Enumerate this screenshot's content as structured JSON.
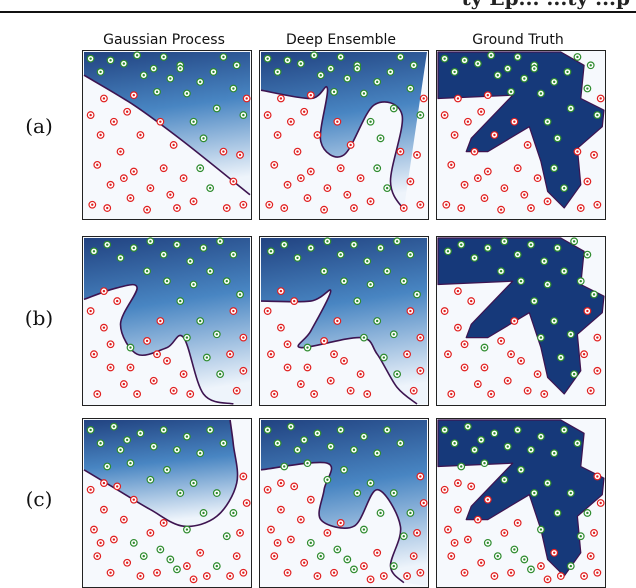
{
  "header": {
    "cut_text": "ty Ep... ...ty ...p"
  },
  "chart_data": {
    "type": "scatter",
    "columns": [
      "Gaussian Process",
      "Deep Ensemble",
      "Ground Truth"
    ],
    "rows": [
      "(a)",
      "(b)",
      "(c)"
    ],
    "colors": {
      "positive": "#2e8b2e",
      "negative": "#e02020",
      "region": "#16397a",
      "boundary": "#3d1450"
    },
    "xlim": [
      0,
      1
    ],
    "ylim": [
      0,
      1
    ],
    "ground_truth_region": [
      [
        0.0,
        1.0
      ],
      [
        0.0,
        0.72
      ],
      [
        0.45,
        0.74
      ],
      [
        0.2,
        0.48
      ],
      [
        0.17,
        0.4
      ],
      [
        0.3,
        0.4
      ],
      [
        0.55,
        0.55
      ],
      [
        0.62,
        0.34
      ],
      [
        0.66,
        0.16
      ],
      [
        0.76,
        0.06
      ],
      [
        0.86,
        0.2
      ],
      [
        0.84,
        0.42
      ],
      [
        0.99,
        0.55
      ],
      [
        1.0,
        0.65
      ],
      [
        0.86,
        0.72
      ],
      [
        0.88,
        0.92
      ],
      [
        0.74,
        1.0
      ]
    ],
    "panels": [
      {
        "row": "(a)",
        "decision_boundaries": {
          "Gaussian Process": [
            [
              0.0,
              0.86
            ],
            [
              0.3,
              0.68
            ],
            [
              0.6,
              0.46
            ],
            [
              1.0,
              0.14
            ]
          ],
          "Deep Ensemble": [
            [
              0.0,
              0.77
            ],
            [
              0.3,
              0.72
            ],
            [
              0.4,
              0.78
            ],
            [
              0.36,
              0.46
            ],
            [
              0.5,
              0.38
            ],
            [
              0.68,
              0.68
            ],
            [
              0.85,
              0.62
            ],
            [
              0.78,
              0.22
            ],
            [
              0.86,
              0.05
            ]
          ]
        },
        "points_positive": [
          [
            0.04,
            0.96
          ],
          [
            0.16,
            0.95
          ],
          [
            0.1,
            0.88
          ],
          [
            0.24,
            0.93
          ],
          [
            0.32,
            0.98
          ],
          [
            0.42,
            0.9
          ],
          [
            0.48,
            0.97
          ],
          [
            0.36,
            0.86
          ],
          [
            0.52,
            0.84
          ],
          [
            0.58,
            0.92
          ],
          [
            0.62,
            0.75
          ],
          [
            0.7,
            0.82
          ],
          [
            0.78,
            0.88
          ],
          [
            0.84,
            0.97
          ],
          [
            0.92,
            0.92
          ],
          [
            0.66,
            0.58
          ],
          [
            0.72,
            0.48
          ],
          [
            0.8,
            0.66
          ],
          [
            0.9,
            0.78
          ],
          [
            0.96,
            0.62
          ],
          [
            0.7,
            0.3
          ],
          [
            0.76,
            0.18
          ],
          [
            0.58,
            0.9
          ],
          [
            0.44,
            0.76
          ]
        ],
        "points_negative": [
          [
            0.04,
            0.62
          ],
          [
            0.1,
            0.5
          ],
          [
            0.18,
            0.58
          ],
          [
            0.26,
            0.64
          ],
          [
            0.08,
            0.32
          ],
          [
            0.16,
            0.2
          ],
          [
            0.22,
            0.4
          ],
          [
            0.3,
            0.28
          ],
          [
            0.4,
            0.18
          ],
          [
            0.48,
            0.3
          ],
          [
            0.05,
            0.08
          ],
          [
            0.14,
            0.06
          ],
          [
            0.28,
            0.12
          ],
          [
            0.38,
            0.05
          ],
          [
            0.52,
            0.14
          ],
          [
            0.56,
            0.06
          ],
          [
            0.6,
            0.24
          ],
          [
            0.34,
            0.5
          ],
          [
            0.46,
            0.58
          ],
          [
            0.54,
            0.44
          ],
          [
            0.3,
            0.74
          ],
          [
            0.84,
            0.4
          ],
          [
            0.9,
            0.22
          ],
          [
            0.96,
            0.08
          ],
          [
            0.86,
            0.06
          ],
          [
            0.66,
            0.1
          ],
          [
            0.94,
            0.38
          ],
          [
            0.24,
            0.24
          ],
          [
            0.12,
            0.72
          ],
          [
            0.98,
            0.72
          ]
        ]
      },
      {
        "row": "(b)",
        "decision_boundaries": {
          "Gaussian Process": [
            [
              0.0,
              0.63
            ],
            [
              0.2,
              0.7
            ],
            [
              0.32,
              0.7
            ],
            [
              0.22,
              0.48
            ],
            [
              0.32,
              0.3
            ],
            [
              0.5,
              0.34
            ],
            [
              0.6,
              0.4
            ],
            [
              0.72,
              0.06
            ],
            [
              0.9,
              0.0
            ]
          ],
          "Deep Ensemble": [
            [
              0.0,
              0.62
            ],
            [
              0.3,
              0.62
            ],
            [
              0.42,
              0.68
            ],
            [
              0.3,
              0.44
            ],
            [
              0.24,
              0.34
            ],
            [
              0.6,
              0.4
            ],
            [
              0.7,
              0.3
            ],
            [
              0.82,
              0.1
            ],
            [
              0.94,
              0.0
            ]
          ]
        },
        "points_positive": [
          [
            0.06,
            0.92
          ],
          [
            0.14,
            0.96
          ],
          [
            0.22,
            0.88
          ],
          [
            0.3,
            0.94
          ],
          [
            0.4,
            0.98
          ],
          [
            0.48,
            0.9
          ],
          [
            0.56,
            0.96
          ],
          [
            0.64,
            0.86
          ],
          [
            0.72,
            0.94
          ],
          [
            0.82,
            0.98
          ],
          [
            0.9,
            0.9
          ],
          [
            0.38,
            0.8
          ],
          [
            0.5,
            0.74
          ],
          [
            0.58,
            0.62
          ],
          [
            0.66,
            0.72
          ],
          [
            0.76,
            0.8
          ],
          [
            0.86,
            0.74
          ],
          [
            0.94,
            0.66
          ],
          [
            0.7,
            0.5
          ],
          [
            0.8,
            0.42
          ],
          [
            0.74,
            0.28
          ],
          [
            0.82,
            0.18
          ],
          [
            0.28,
            0.34
          ],
          [
            0.62,
            0.4
          ]
        ],
        "points_negative": [
          [
            0.04,
            0.56
          ],
          [
            0.12,
            0.46
          ],
          [
            0.06,
            0.3
          ],
          [
            0.16,
            0.22
          ],
          [
            0.24,
            0.12
          ],
          [
            0.08,
            0.06
          ],
          [
            0.32,
            0.06
          ],
          [
            0.42,
            0.14
          ],
          [
            0.5,
            0.26
          ],
          [
            0.38,
            0.38
          ],
          [
            0.46,
            0.5
          ],
          [
            0.2,
            0.62
          ],
          [
            0.54,
            0.08
          ],
          [
            0.6,
            0.18
          ],
          [
            0.64,
            0.06
          ],
          [
            0.9,
            0.56
          ],
          [
            0.96,
            0.4
          ],
          [
            0.88,
            0.3
          ],
          [
            0.96,
            0.2
          ],
          [
            0.92,
            0.08
          ],
          [
            0.16,
            0.36
          ],
          [
            0.28,
            0.22
          ],
          [
            0.44,
            0.3
          ],
          [
            0.12,
            0.68
          ]
        ]
      },
      {
        "row": "(c)",
        "decision_boundaries": {
          "Gaussian Process": [
            [
              0.0,
              0.7
            ],
            [
              0.2,
              0.58
            ],
            [
              0.4,
              0.46
            ],
            [
              0.6,
              0.36
            ],
            [
              0.8,
              0.42
            ],
            [
              0.92,
              0.62
            ],
            [
              0.9,
              0.85
            ],
            [
              0.88,
              1.0
            ]
          ],
          "Deep Ensemble": [
            [
              0.0,
              0.7
            ],
            [
              0.4,
              0.74
            ],
            [
              0.38,
              0.58
            ],
            [
              0.36,
              0.4
            ],
            [
              0.56,
              0.36
            ],
            [
              0.7,
              0.58
            ],
            [
              0.84,
              0.36
            ],
            [
              0.78,
              0.12
            ],
            [
              0.86,
              0.02
            ]
          ]
        },
        "points_positive": [
          [
            0.04,
            0.94
          ],
          [
            0.1,
            0.86
          ],
          [
            0.18,
            0.96
          ],
          [
            0.26,
            0.88
          ],
          [
            0.34,
            0.92
          ],
          [
            0.42,
            0.84
          ],
          [
            0.48,
            0.94
          ],
          [
            0.56,
            0.82
          ],
          [
            0.62,
            0.9
          ],
          [
            0.7,
            0.8
          ],
          [
            0.76,
            0.94
          ],
          [
            0.84,
            0.86
          ],
          [
            0.28,
            0.74
          ],
          [
            0.4,
            0.64
          ],
          [
            0.5,
            0.7
          ],
          [
            0.58,
            0.56
          ],
          [
            0.66,
            0.62
          ],
          [
            0.72,
            0.44
          ],
          [
            0.8,
            0.56
          ],
          [
            0.86,
            0.3
          ],
          [
            0.8,
            0.12
          ],
          [
            0.62,
            0.34
          ],
          [
            0.46,
            0.22
          ],
          [
            0.36,
            0.18
          ],
          [
            0.3,
            0.26
          ],
          [
            0.52,
            0.16
          ],
          [
            0.56,
            0.1
          ],
          [
            0.9,
            0.44
          ],
          [
            0.22,
            0.82
          ],
          [
            0.14,
            0.72
          ]
        ],
        "points_negative": [
          [
            0.04,
            0.58
          ],
          [
            0.12,
            0.46
          ],
          [
            0.06,
            0.34
          ],
          [
            0.18,
            0.28
          ],
          [
            0.08,
            0.18
          ],
          [
            0.16,
            0.08
          ],
          [
            0.26,
            0.14
          ],
          [
            0.34,
            0.06
          ],
          [
            0.44,
            0.08
          ],
          [
            0.24,
            0.4
          ],
          [
            0.3,
            0.52
          ],
          [
            0.2,
            0.6
          ],
          [
            0.62,
            0.12
          ],
          [
            0.7,
            0.2
          ],
          [
            0.66,
            0.04
          ],
          [
            0.92,
            0.18
          ],
          [
            0.96,
            0.08
          ],
          [
            0.94,
            0.32
          ],
          [
            0.98,
            0.5
          ],
          [
            0.96,
            0.66
          ],
          [
            0.12,
            0.62
          ],
          [
            0.4,
            0.32
          ],
          [
            0.48,
            0.38
          ],
          [
            0.74,
            0.06
          ],
          [
            0.88,
            0.06
          ],
          [
            0.1,
            0.26
          ]
        ]
      }
    ]
  }
}
